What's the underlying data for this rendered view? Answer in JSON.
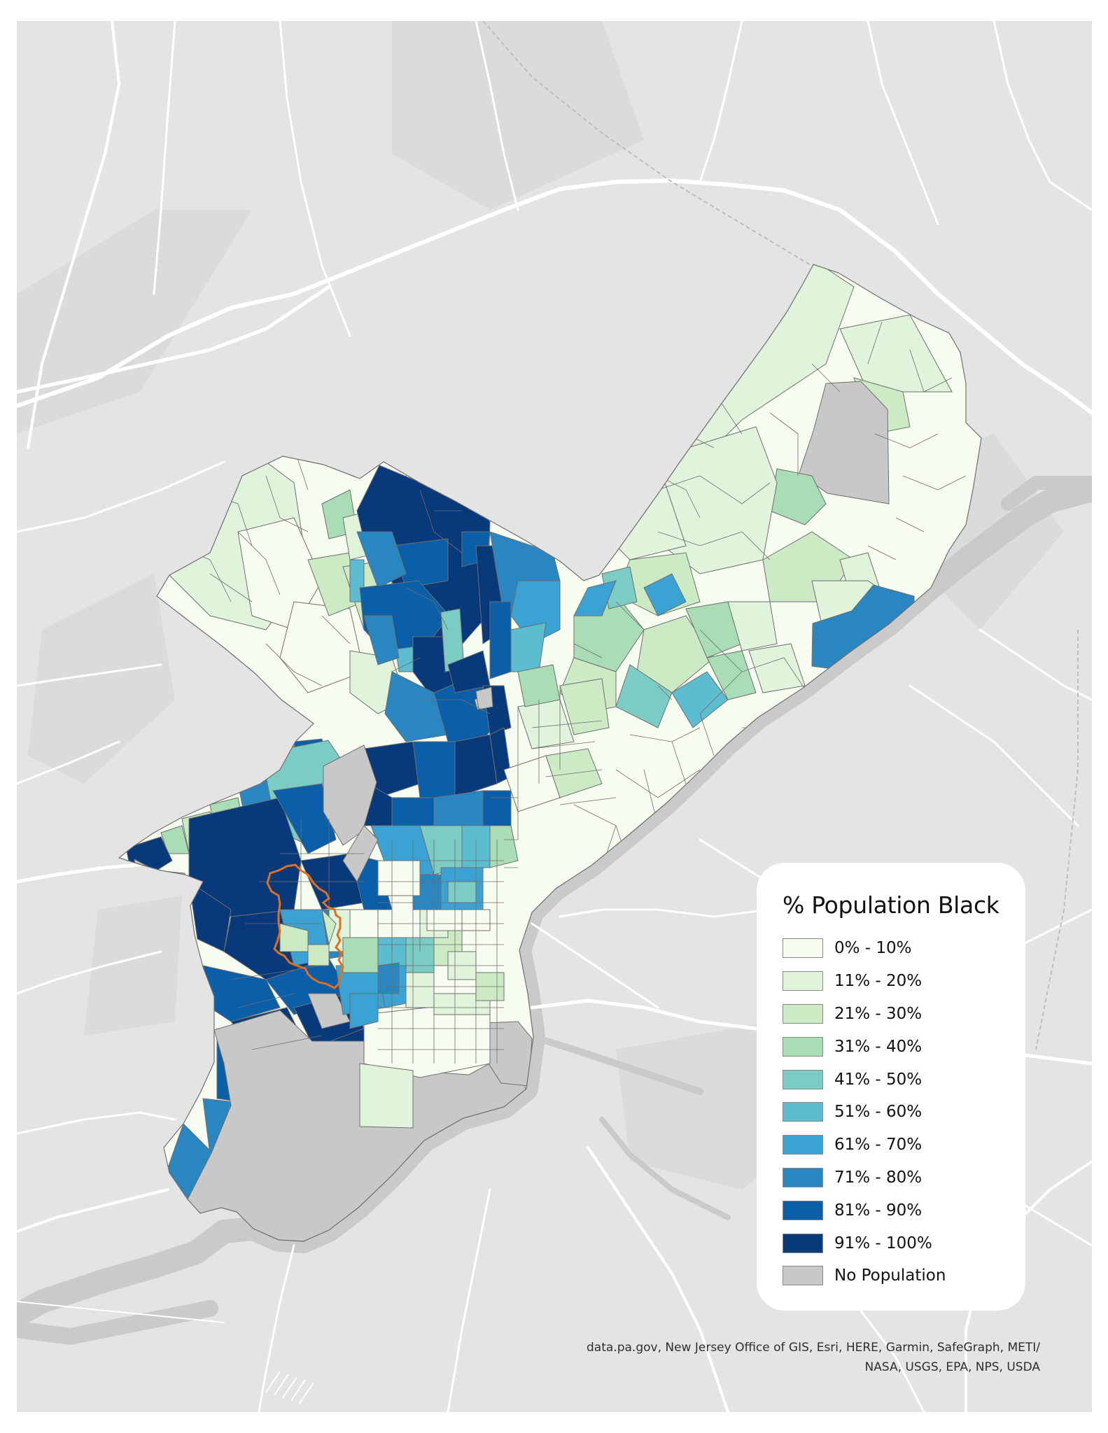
{
  "legend": {
    "title": "% Population Black",
    "classes": [
      {
        "label": "0% - 10%",
        "color": "#f7fcf0"
      },
      {
        "label": "11% - 20%",
        "color": "#e0f3db"
      },
      {
        "label": "21% - 30%",
        "color": "#ccebc5"
      },
      {
        "label": "31% - 40%",
        "color": "#a8ddb5"
      },
      {
        "label": "41% - 50%",
        "color": "#7bccc4"
      },
      {
        "label": "51% - 60%",
        "color": "#5cbcd0"
      },
      {
        "label": "61% - 70%",
        "color": "#3aa3d3"
      },
      {
        "label": "71% - 80%",
        "color": "#2a86c0"
      },
      {
        "label": "81% - 90%",
        "color": "#0b5fa8"
      },
      {
        "label": "91% - 100%",
        "color": "#08397a"
      },
      {
        "label": "No Population",
        "color": "#c8c8c8"
      }
    ]
  },
  "attribution": {
    "line1": "data.pa.gov, New Jersey Office of GIS, Esri, HERE, Garmin, SafeGraph, METI/",
    "line2": "NASA, USGS, EPA, NPS, USDA"
  },
  "colors": {
    "basemap": "#e4e4e4",
    "roads": "#ffffff",
    "water": "#cacaca",
    "tract_border": "#6f6f6f",
    "highlight_outline": "#e0701e"
  }
}
